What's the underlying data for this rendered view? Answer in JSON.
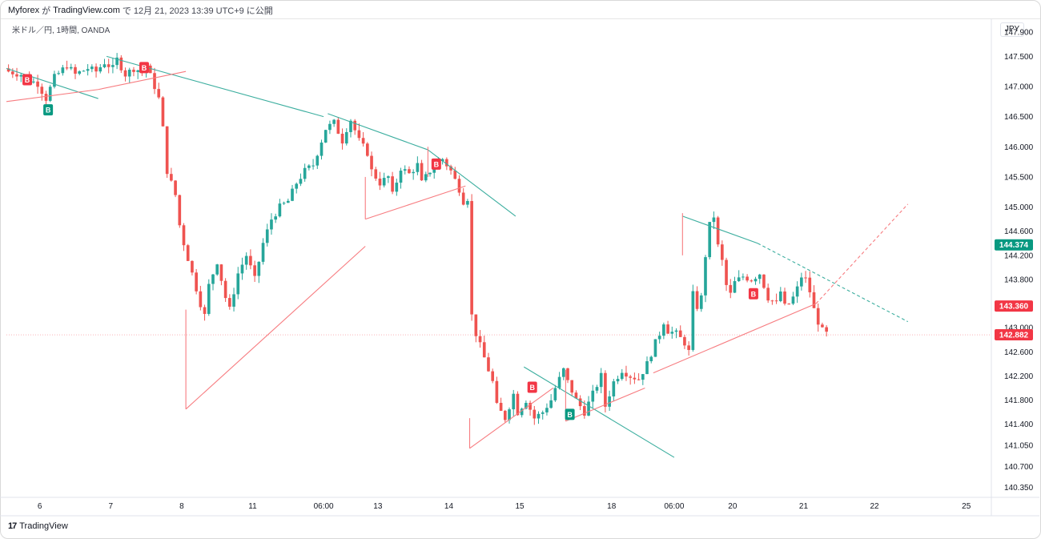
{
  "header": {
    "publisher": "Myforex",
    "particle_ga": "が",
    "platform": "TradingView.com",
    "particle_de": "で",
    "timestamp": "12月 21, 2023 13:39 UTC+9",
    "published": "に公開"
  },
  "symbol_info": "米ドル／円, 1時間, OANDA",
  "currency_label": "JPY",
  "brand": {
    "logo": "17",
    "name": "TradingView"
  },
  "colors": {
    "up": "#26a69a",
    "down": "#ef5350",
    "support": "#f77c80",
    "resistance": "#3cae9f",
    "price_current": "#f23645",
    "price_alt": "#089981"
  },
  "chart_data": {
    "type": "candlestick",
    "symbol": "USDJPY",
    "timeframe": "1H",
    "ylim": [
      140.2,
      147.85
    ],
    "y_ticks": [
      "140.350",
      "140.700",
      "141.050",
      "141.400",
      "141.800",
      "142.200",
      "142.600",
      "143.000",
      "143.400",
      "143.800",
      "144.200",
      "144.600",
      "145.000",
      "145.500",
      "146.000",
      "146.500",
      "147.000",
      "147.500",
      "147.900"
    ],
    "x_ticks": [
      {
        "label": "6",
        "bar": 8
      },
      {
        "label": "7",
        "bar": 25
      },
      {
        "label": "8",
        "bar": 42
      },
      {
        "label": "11",
        "bar": 59
      },
      {
        "label": "06:00",
        "bar": 76
      },
      {
        "label": "13",
        "bar": 89
      },
      {
        "label": "14",
        "bar": 106
      },
      {
        "label": "15",
        "bar": 123
      },
      {
        "label": "18",
        "bar": 145
      },
      {
        "label": "06:00",
        "bar": 160
      },
      {
        "label": "20",
        "bar": 174
      },
      {
        "label": "21",
        "bar": 191
      },
      {
        "label": "22",
        "bar": 208
      },
      {
        "label": "25",
        "bar": 230
      }
    ],
    "bar_count": 236,
    "close_path": [
      [
        0,
        147.25
      ],
      [
        3,
        147.2
      ],
      [
        5,
        147.1
      ],
      [
        7,
        147.05
      ],
      [
        9,
        146.8
      ],
      [
        11,
        147.15
      ],
      [
        14,
        147.35
      ],
      [
        16,
        147.2
      ],
      [
        19,
        147.3
      ],
      [
        21,
        147.25
      ],
      [
        23,
        147.4
      ],
      [
        25,
        147.3
      ],
      [
        26,
        147.45
      ],
      [
        28,
        147.2
      ],
      [
        30,
        147.3
      ],
      [
        32,
        147.25
      ],
      [
        33,
        147.35
      ],
      [
        35,
        147.0
      ],
      [
        36,
        146.8
      ],
      [
        37,
        146.3
      ],
      [
        38,
        145.6
      ],
      [
        40,
        145.2
      ],
      [
        41,
        144.7
      ],
      [
        42,
        144.4
      ],
      [
        44,
        143.9
      ],
      [
        46,
        143.4
      ],
      [
        47,
        143.2
      ],
      [
        48,
        143.7
      ],
      [
        50,
        144.1
      ],
      [
        52,
        143.5
      ],
      [
        53,
        143.3
      ],
      [
        55,
        143.9
      ],
      [
        57,
        144.2
      ],
      [
        59,
        143.8
      ],
      [
        61,
        144.4
      ],
      [
        63,
        144.8
      ],
      [
        65,
        145.0
      ],
      [
        67,
        145.1
      ],
      [
        69,
        145.4
      ],
      [
        71,
        145.6
      ],
      [
        73,
        145.7
      ],
      [
        75,
        146.1
      ],
      [
        76,
        146.3
      ],
      [
        78,
        146.4
      ],
      [
        80,
        146.1
      ],
      [
        81,
        146.3
      ],
      [
        82,
        146.45
      ],
      [
        84,
        146.1
      ],
      [
        86,
        145.9
      ],
      [
        87,
        145.6
      ],
      [
        89,
        145.4
      ],
      [
        91,
        145.5
      ],
      [
        92,
        145.2
      ],
      [
        94,
        145.65
      ],
      [
        96,
        145.55
      ],
      [
        98,
        145.7
      ],
      [
        99,
        145.4
      ],
      [
        101,
        145.6
      ],
      [
        103,
        145.75
      ],
      [
        104,
        145.8
      ],
      [
        106,
        145.6
      ],
      [
        108,
        145.3
      ],
      [
        109,
        145.1
      ],
      [
        110,
        145.15
      ],
      [
        111,
        143.2
      ],
      [
        112,
        142.9
      ],
      [
        113,
        142.7
      ],
      [
        115,
        142.3
      ],
      [
        116,
        142.1
      ],
      [
        117,
        141.7
      ],
      [
        119,
        141.5
      ],
      [
        121,
        141.9
      ],
      [
        122,
        141.6
      ],
      [
        124,
        141.8
      ],
      [
        126,
        141.5
      ],
      [
        128,
        141.6
      ],
      [
        130,
        141.8
      ],
      [
        131,
        142.0
      ],
      [
        133,
        142.3
      ],
      [
        134,
        142.1
      ],
      [
        136,
        141.8
      ],
      [
        138,
        141.6
      ],
      [
        140,
        141.9
      ],
      [
        142,
        142.2
      ],
      [
        143,
        141.7
      ],
      [
        145,
        142.1
      ],
      [
        147,
        142.3
      ],
      [
        149,
        142.2
      ],
      [
        151,
        142.15
      ],
      [
        153,
        142.4
      ],
      [
        155,
        142.75
      ],
      [
        156,
        142.9
      ],
      [
        157,
        143.1
      ],
      [
        158,
        142.95
      ],
      [
        160,
        142.9
      ],
      [
        162,
        142.75
      ],
      [
        163,
        142.6
      ],
      [
        164,
        143.55
      ],
      [
        165,
        143.35
      ],
      [
        166,
        143.5
      ],
      [
        167,
        144.2
      ],
      [
        168,
        144.7
      ],
      [
        169,
        144.85
      ],
      [
        170,
        144.35
      ],
      [
        171,
        144.1
      ],
      [
        172,
        143.7
      ],
      [
        173,
        143.55
      ],
      [
        174,
        143.75
      ],
      [
        176,
        143.85
      ],
      [
        178,
        143.8
      ],
      [
        180,
        143.9
      ],
      [
        181,
        143.7
      ],
      [
        182,
        143.5
      ],
      [
        184,
        143.4
      ],
      [
        185,
        143.6
      ],
      [
        186,
        143.35
      ],
      [
        187,
        143.4
      ],
      [
        188,
        143.5
      ],
      [
        189,
        143.65
      ],
      [
        190,
        143.85
      ],
      [
        191,
        143.8
      ],
      [
        192,
        143.6
      ],
      [
        193,
        143.3
      ],
      [
        194,
        143.1
      ],
      [
        195,
        142.95
      ],
      [
        196,
        142.9
      ]
    ],
    "trendlines": [
      {
        "role": "resistance",
        "from": [
          0,
          147.3
        ],
        "to": [
          22,
          146.8
        ]
      },
      {
        "role": "support",
        "from": [
          0,
          146.75
        ],
        "to": [
          22,
          146.95
        ]
      },
      {
        "role": "resistance",
        "from": [
          24,
          147.5
        ],
        "to": [
          76,
          146.5
        ]
      },
      {
        "role": "support",
        "from": [
          22,
          146.95
        ],
        "to": [
          43,
          147.25
        ]
      },
      {
        "role": "support",
        "from": [
          43,
          141.65
        ],
        "to": [
          86,
          144.35
        ]
      },
      {
        "role": "vertical",
        "from": [
          43,
          141.65
        ],
        "to": [
          43,
          143.3
        ]
      },
      {
        "role": "resistance",
        "from": [
          77,
          146.55
        ],
        "to": [
          101,
          145.95
        ]
      },
      {
        "role": "resistance",
        "from": [
          101,
          145.95
        ],
        "to": [
          122,
          144.85
        ]
      },
      {
        "role": "support",
        "from": [
          86,
          144.8
        ],
        "to": [
          110,
          145.35
        ]
      },
      {
        "role": "vertical",
        "from": [
          86,
          144.8
        ],
        "to": [
          86,
          145.5
        ]
      },
      {
        "role": "vertical",
        "from": [
          101,
          145.5
        ],
        "to": [
          101,
          146.0
        ]
      },
      {
        "role": "support",
        "from": [
          111,
          141.0
        ],
        "to": [
          131,
          142.0
        ]
      },
      {
        "role": "vertical",
        "from": [
          111,
          141.0
        ],
        "to": [
          111,
          141.5
        ]
      },
      {
        "role": "resistance",
        "from": [
          124,
          142.35
        ],
        "to": [
          160,
          140.85
        ]
      },
      {
        "role": "support",
        "from": [
          134,
          141.45
        ],
        "to": [
          153,
          142.0
        ]
      },
      {
        "role": "vertical",
        "from": [
          134,
          141.45
        ],
        "to": [
          134,
          142.3
        ]
      },
      {
        "role": "support",
        "from": [
          155,
          142.25
        ],
        "to": [
          194,
          143.4
        ]
      },
      {
        "role": "support_dashed",
        "from": [
          194,
          143.4
        ],
        "to": [
          216,
          145.05
        ]
      },
      {
        "role": "resistance",
        "from": [
          162,
          144.85
        ],
        "to": [
          180,
          144.4
        ]
      },
      {
        "role": "resistance_dashed",
        "from": [
          180,
          144.4
        ],
        "to": [
          216,
          143.1
        ]
      },
      {
        "role": "vertical",
        "from": [
          162,
          144.2
        ],
        "to": [
          162,
          144.9
        ]
      }
    ],
    "markers": [
      {
        "label": "B",
        "bar": 5,
        "price": 147.1,
        "color": "down"
      },
      {
        "label": "B",
        "bar": 10,
        "price": 146.6,
        "color": "up"
      },
      {
        "label": "B",
        "bar": 33,
        "price": 147.3,
        "color": "down"
      },
      {
        "label": "B",
        "bar": 103,
        "price": 145.7,
        "color": "down"
      },
      {
        "label": "B",
        "bar": 126,
        "price": 142.0,
        "color": "down"
      },
      {
        "label": "B",
        "bar": 135,
        "price": 141.55,
        "color": "up"
      },
      {
        "label": "B",
        "bar": 179,
        "price": 143.55,
        "color": "down"
      }
    ],
    "price_labels": [
      {
        "value": "144.374",
        "price": 144.374,
        "color": "price_alt"
      },
      {
        "value": "143.360",
        "price": 143.36,
        "color": "price_current"
      },
      {
        "value": "142.882",
        "price": 142.882,
        "color": "price_current"
      }
    ],
    "current_price_line": 142.882
  }
}
